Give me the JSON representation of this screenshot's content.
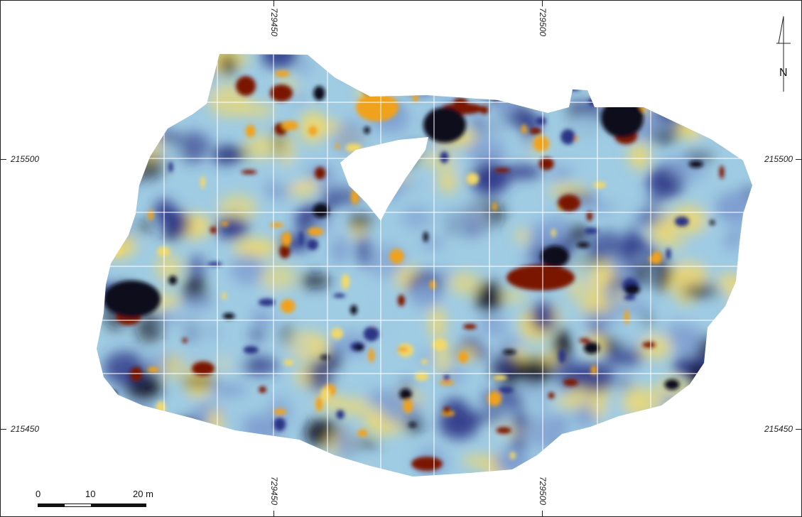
{
  "map": {
    "colors": {
      "very_low": "#0b0b1e",
      "low": "#2b3585",
      "mid_low": "#7f9fd0",
      "mid": "#9fcbe3",
      "mid_high": "#f1d86a",
      "high": "#f0a21a",
      "very_high": "#7a1205",
      "grid": "#ffffff"
    },
    "coordinates": {
      "easting_1": "729450",
      "easting_2": "729500",
      "northing_1": "215500",
      "northing_2": "215450"
    },
    "north_arrow": {
      "label": "N"
    },
    "scale_bar": {
      "labels": [
        "0",
        "10",
        "20 m"
      ]
    }
  }
}
